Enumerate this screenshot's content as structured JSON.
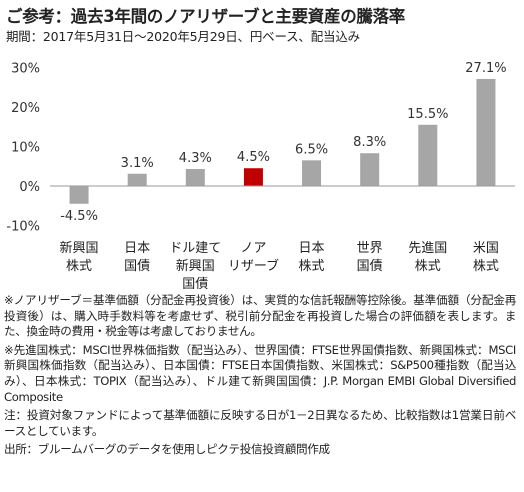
{
  "header": {
    "title": "ご参考：過去3年間のノアリザーブと主要資産の騰落率",
    "subtitle": "期間：2017年5月31日～2020年5月29日、円ベース、配当込み"
  },
  "colors": {
    "bar_default": "#a6a6a6",
    "bar_highlight": "#c00000",
    "axis": "#999999"
  },
  "chart_data": {
    "type": "bar",
    "categories": [
      [
        "新興国",
        "株式"
      ],
      [
        "日本",
        "国債"
      ],
      [
        "ドル建て",
        "新興国",
        "国債"
      ],
      [
        "ノア",
        "リザーブ"
      ],
      [
        "日本",
        "株式"
      ],
      [
        "世界",
        "国債"
      ],
      [
        "先進国",
        "株式"
      ],
      [
        "米国",
        "株式"
      ]
    ],
    "values": [
      -4.5,
      3.1,
      4.3,
      4.5,
      6.5,
      8.3,
      15.5,
      27.1
    ],
    "value_labels": [
      "-4.5%",
      "3.1%",
      "4.3%",
      "4.5%",
      "6.5%",
      "8.3%",
      "15.5%",
      "27.1%"
    ],
    "highlight_index": 3,
    "yticks": [
      30,
      20,
      10,
      0,
      -10
    ],
    "ytick_labels": [
      "30%",
      "20%",
      "10%",
      "0%",
      "-10%"
    ],
    "ylim": [
      -10,
      30
    ],
    "grid": false,
    "legend": "none"
  },
  "notes": {
    "note1": "※ノアリザーブ＝基準価額（分配金再投資後）は、実質的な信託報酬等控除後。基準価額（分配金再投資後）は、購入時手数料等を考慮せず、税引前分配金を再投資した場合の評価額を表します。また、換金時の費用・税金等は考慮しておりません。",
    "note2": "※先進国株式：MSCI世界株価指数（配当込み）、世界国債：FTSE世界国債指数、新興国株式：MSCI新興国株価指数（配当込み）、日本国債：FTSE日本国債指数、米国株式：S&P500種指数（配当込み）、日本株式：TOPIX（配当込み）、ドル建て新興国国債：J.P. Morgan EMBI Global Diversified Composite",
    "note3": "注：投資対象ファンドによって基準価額に反映する日が1－2日異なるため、比較指数は1営業日前ベースとしています。",
    "source": "出所：ブルームバーグのデータを使用しピクテ投信投資顧問作成"
  }
}
